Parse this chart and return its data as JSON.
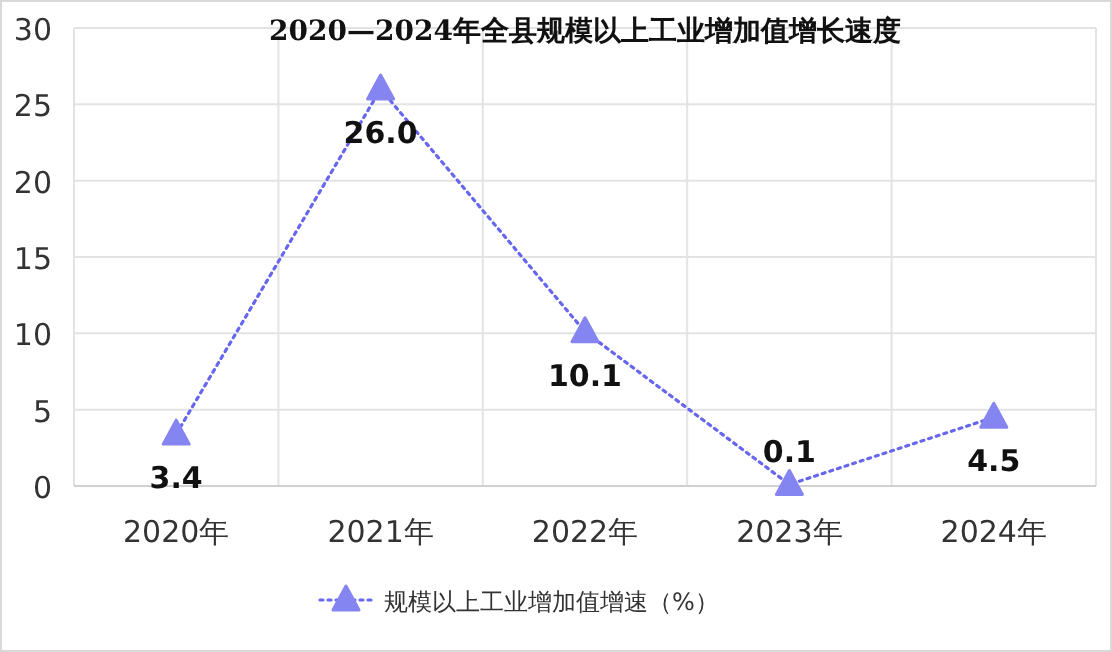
{
  "chart_data": {
    "type": "line",
    "title": "2020—2024年全县规模以上工业增加值增长速度",
    "categories": [
      "2020年",
      "2021年",
      "2022年",
      "2023年",
      "2024年"
    ],
    "series": [
      {
        "name": "规模以上工业增加值增速（%）",
        "color": "#6666ee",
        "values": [
          3.4,
          26.0,
          10.1,
          0.1,
          4.5
        ],
        "value_labels": [
          "3.4",
          "26.0",
          "10.1",
          "0.1",
          "4.5"
        ]
      }
    ],
    "ylim": [
      0,
      30
    ],
    "yticks": [
      0,
      5,
      10,
      15,
      20,
      25,
      30
    ],
    "grid": true,
    "legend": "bottom",
    "marker": "triangle",
    "line_style": "dotted"
  }
}
